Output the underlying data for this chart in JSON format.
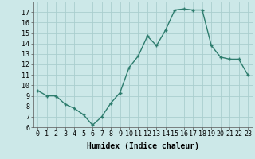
{
  "x": [
    0,
    1,
    2,
    3,
    4,
    5,
    6,
    7,
    8,
    9,
    10,
    11,
    12,
    13,
    14,
    15,
    16,
    17,
    18,
    19,
    20,
    21,
    22,
    23
  ],
  "y": [
    9.5,
    9.0,
    9.0,
    8.2,
    7.8,
    7.2,
    6.2,
    7.0,
    8.3,
    9.3,
    11.7,
    12.8,
    14.7,
    13.8,
    15.3,
    17.2,
    17.3,
    17.2,
    17.2,
    13.8,
    12.7,
    12.5,
    12.5,
    11.0
  ],
  "line_color": "#2e7d6e",
  "marker": "+",
  "marker_size": 3,
  "background_color": "#cce8e8",
  "grid_color": "#aacece",
  "xlabel": "Humidex (Indice chaleur)",
  "ylim": [
    6,
    18
  ],
  "xlim": [
    -0.5,
    23.5
  ],
  "yticks": [
    6,
    7,
    8,
    9,
    10,
    11,
    12,
    13,
    14,
    15,
    16,
    17
  ],
  "xticks": [
    0,
    1,
    2,
    3,
    4,
    5,
    6,
    7,
    8,
    9,
    10,
    11,
    12,
    13,
    14,
    15,
    16,
    17,
    18,
    19,
    20,
    21,
    22,
    23
  ],
  "tick_fontsize": 6,
  "xlabel_fontsize": 7,
  "line_width": 1.0
}
